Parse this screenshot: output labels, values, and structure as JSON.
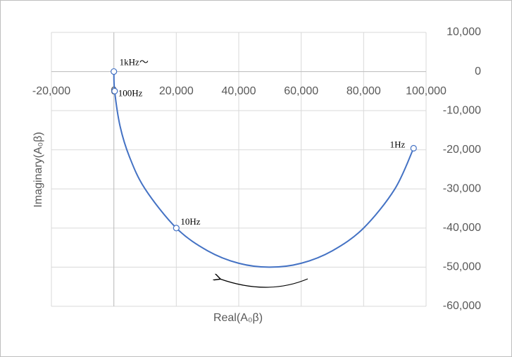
{
  "chart_data": {
    "type": "scatter",
    "x_label": "Real(A₀β)",
    "y_label": "Imaginary(A₀β)",
    "xlim": [
      -20000,
      100000
    ],
    "xticks": [
      {
        "value": -20000,
        "label": "-20,000"
      },
      0,
      {
        "value": 20000,
        "label": "20,000"
      },
      {
        "value": 40000,
        "label": "40,000"
      },
      {
        "value": 60000,
        "label": "60,000"
      },
      {
        "value": 80000,
        "label": "80,000"
      },
      {
        "value": 100000,
        "label": "100,000"
      }
    ],
    "ylim": [
      -60000,
      10000
    ],
    "yticks": [
      {
        "value": 10000,
        "label": "10,000"
      },
      0,
      {
        "value": -10000,
        "label": "-10,000"
      },
      {
        "value": -20000,
        "label": "-20,000"
      },
      {
        "value": -30000,
        "label": "-30,000"
      },
      {
        "value": -40000,
        "label": "-40,000"
      },
      {
        "value": -50000,
        "label": "-50,000"
      },
      {
        "value": -60000,
        "label": "-60,000"
      }
    ],
    "grid": true,
    "series": [
      {
        "color": "#4472c4",
        "markers": false,
        "x": [
          96000,
          90000,
          80000,
          70000,
          60000,
          50000,
          40000,
          30000,
          20000,
          10000,
          5000,
          2000,
          250,
          0
        ],
        "values": [
          -19600,
          -30000,
          -40000,
          -45800,
          -49000,
          -50000,
          -49000,
          -45800,
          -40000,
          -30000,
          -21800,
          -14000,
          -5000,
          0
        ]
      },
      {
        "color": "#4472c4",
        "markers": true,
        "x": [
          96000,
          20000,
          250,
          0
        ],
        "values": [
          -19600,
          -40000,
          -5000,
          0
        ],
        "point_labels": [
          "1Hz",
          "10Hz",
          "100Hz",
          "1kHz～"
        ]
      }
    ]
  }
}
